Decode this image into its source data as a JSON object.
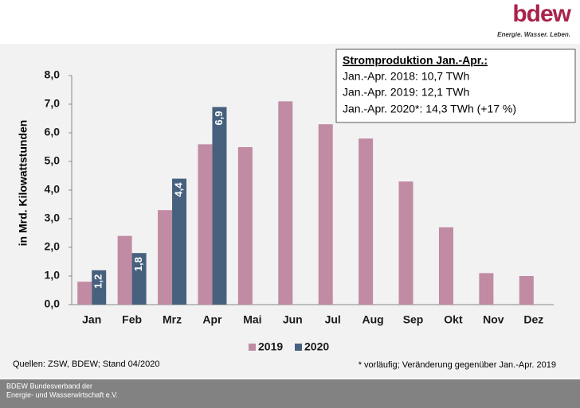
{
  "logo": {
    "name": "bdew",
    "tagline": "Energie. Wasser. Leben."
  },
  "chart_data": {
    "type": "bar",
    "y_label": "in Mrd. Kilowattstunden",
    "categories": [
      "Jan",
      "Feb",
      "Mrz",
      "Apr",
      "Mai",
      "Jun",
      "Jul",
      "Aug",
      "Sep",
      "Okt",
      "Nov",
      "Dez"
    ],
    "series": [
      {
        "name": "2019",
        "color": "#c08ba3",
        "values": [
          0.8,
          2.4,
          3.3,
          5.6,
          5.5,
          7.1,
          6.3,
          5.8,
          4.3,
          2.7,
          1.1,
          1.0
        ]
      },
      {
        "name": "2020",
        "color": "#46607e",
        "values": [
          1.2,
          1.8,
          4.4,
          6.9,
          null,
          null,
          null,
          null,
          null,
          null,
          null,
          null
        ],
        "value_labels": [
          "1,2",
          "1,8",
          "4,4",
          "6,9",
          null,
          null,
          null,
          null,
          null,
          null,
          null,
          null
        ]
      }
    ],
    "ylim": [
      0,
      8
    ],
    "yticks": [
      {
        "value": 0,
        "label": "0,0"
      },
      {
        "value": 1,
        "label": "1,0"
      },
      {
        "value": 2,
        "label": "2,0"
      },
      {
        "value": 3,
        "label": "3,0"
      },
      {
        "value": 4,
        "label": "4,0"
      },
      {
        "value": 5,
        "label": "5,0"
      },
      {
        "value": 6,
        "label": "6,0"
      },
      {
        "value": 7,
        "label": "7,0"
      },
      {
        "value": 8,
        "label": "8,0"
      }
    ],
    "legend": "bottom",
    "annotation": {
      "title": "Stromproduktion Jan.-Apr.:",
      "lines": [
        "Jan.-Apr. 2018:  10,7 TWh",
        "Jan.-Apr. 2019:  12,1 TWh",
        "Jan.-Apr. 2020*: 14,3 TWh (+17 %)"
      ]
    },
    "source": "Quellen: ZSW, BDEW; Stand 04/2020",
    "note": "* vorläufig; Veränderung gegenüber Jan.-Apr. 2019"
  },
  "footer": [
    "BDEW Bundesverband der",
    "Energie- und Wasserwirtschaft e.V."
  ]
}
